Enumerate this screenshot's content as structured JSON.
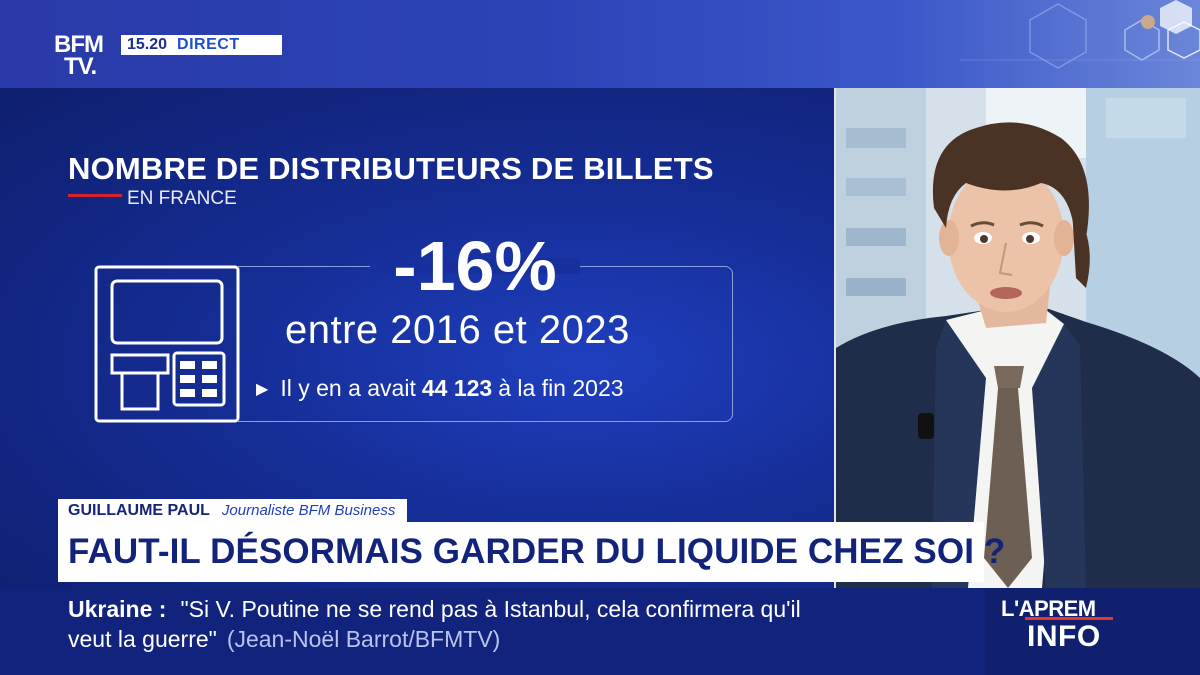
{
  "channel": {
    "logo_line1": "BFM",
    "logo_line2": "TV.",
    "time": "15.20",
    "live_label": "DIRECT"
  },
  "infographic": {
    "title": "NOMBRE DE DISTRIBUTEURS DE BILLETS",
    "subtitle": "EN FRANCE",
    "icon": "atm-icon",
    "big_stat": "-16%",
    "period": "entre 2016 et 2023",
    "note_prefix": "Il y en a avait",
    "note_value": "44 123",
    "note_suffix": "à la fin 2023"
  },
  "lower_third": {
    "name": "GUILLAUME PAUL",
    "role": "Journaliste BFM Business",
    "headline": "FAUT-IL DÉSORMAIS GARDER DU LIQUIDE CHEZ SOI ?"
  },
  "ticker": {
    "keyword": "Ukraine :",
    "text_line1": "\"Si V. Poutine ne se rend pas à Istanbul, cela confirmera qu'il",
    "text_line2": "veut la guerre\"",
    "source": "(Jean-Noël Barrot/BFMTV)"
  },
  "show": {
    "line1": "L'APREM",
    "line2": "INFO"
  },
  "colors": {
    "brand_blue": "#12237d",
    "accent_red": "#d6232a",
    "panel_blue": "#152c94"
  }
}
